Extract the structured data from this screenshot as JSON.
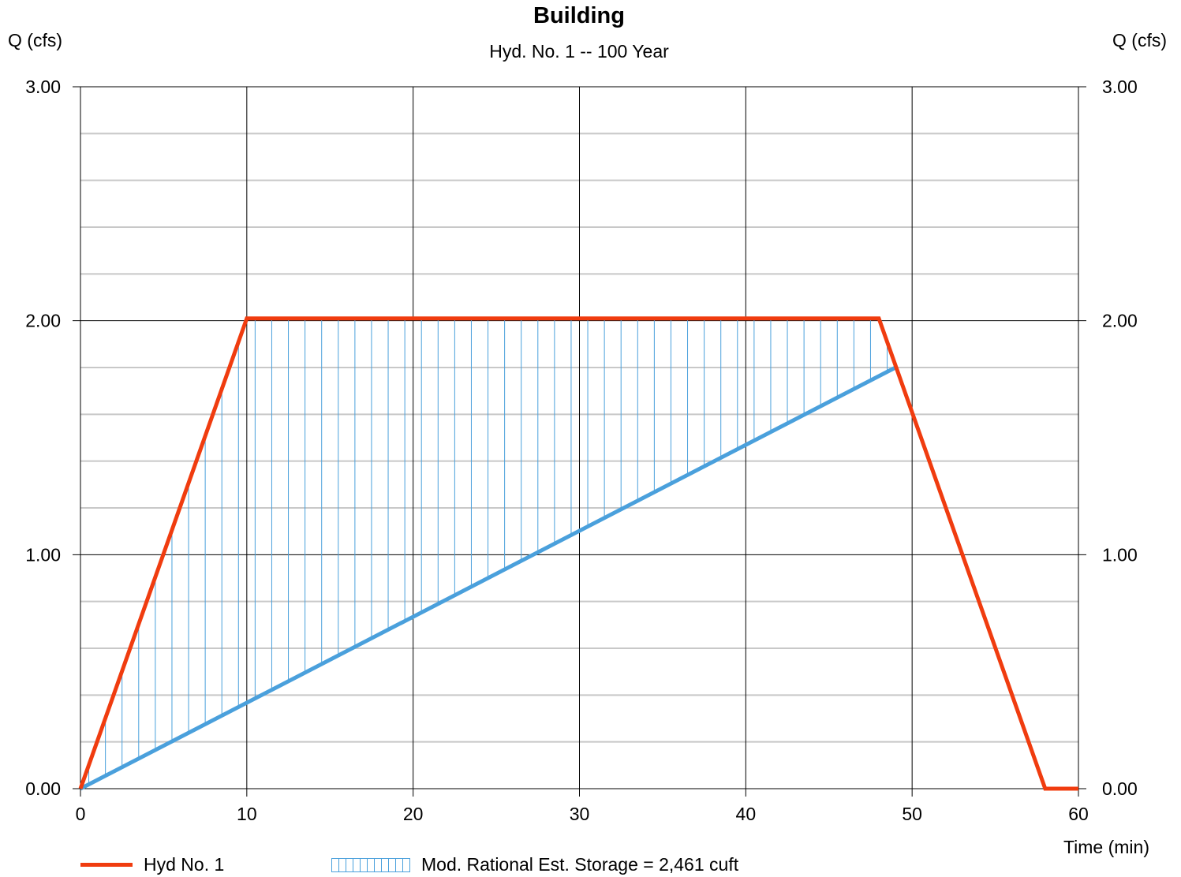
{
  "chart_data": {
    "type": "line",
    "title": "Building",
    "subtitle": "Hyd. No. 1 -- 100 Year",
    "ylabel_left": "Q (cfs)",
    "ylabel_right": "Q (cfs)",
    "xlabel": "Time (min)",
    "xlim": [
      0,
      60
    ],
    "ylim": [
      0,
      3
    ],
    "x_ticks": [
      "0",
      "10",
      "20",
      "30",
      "40",
      "50",
      "60"
    ],
    "y_ticks": [
      "0.00",
      "1.00",
      "2.00",
      "3.00"
    ],
    "grid": true,
    "series": [
      {
        "name": "Hyd No. 1",
        "color": "#f03c0f",
        "x": [
          0,
          10,
          48,
          58,
          60
        ],
        "y": [
          0,
          2.01,
          2.01,
          0,
          0
        ]
      },
      {
        "name": "",
        "color": "#4aa0dc",
        "x": [
          0,
          49
        ],
        "y": [
          0,
          1.8
        ]
      }
    ],
    "storage_fill": {
      "name": "Mod. Rational Est. Storage = 2,461 cuft",
      "color": "#4aa0dc",
      "x_from": 0,
      "x_to": 49
    },
    "legend_position": "bottom-left"
  }
}
